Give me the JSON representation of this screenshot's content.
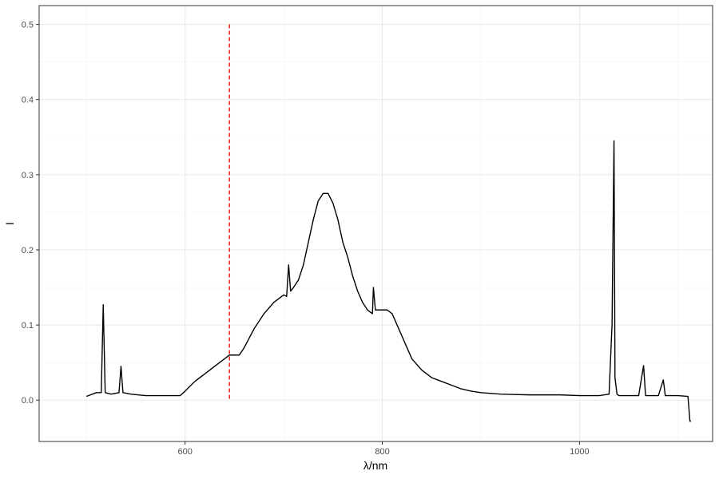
{
  "chart_data": {
    "type": "line",
    "title": "",
    "xlabel": "λ/nm",
    "ylabel": "I",
    "xlim": [
      452,
      1135
    ],
    "ylim": [
      -0.055,
      0.525
    ],
    "grid": true,
    "legend": "none",
    "x_ticks": [
      600,
      800,
      1000
    ],
    "x_tick_labels": [
      "600",
      "800",
      "1000"
    ],
    "y_ticks": [
      0.0,
      0.1,
      0.2,
      0.3,
      0.4,
      0.5
    ],
    "y_tick_labels": [
      "0.0",
      "0.1",
      "0.2",
      "0.3",
      "0.4",
      "0.5"
    ],
    "series": [
      {
        "color": "#000000",
        "x": [
          500,
          510,
          515,
          517,
          519,
          525,
          533,
          535,
          537,
          545,
          560,
          580,
          595,
          600,
          610,
          620,
          630,
          640,
          645,
          650,
          655,
          660,
          670,
          680,
          690,
          700,
          703,
          705,
          707,
          710,
          715,
          720,
          725,
          730,
          735,
          740,
          745,
          750,
          755,
          760,
          765,
          770,
          775,
          780,
          785,
          790,
          791,
          793,
          795,
          800,
          805,
          810,
          815,
          820,
          825,
          830,
          840,
          850,
          860,
          870,
          880,
          890,
          900,
          920,
          950,
          980,
          1000,
          1020,
          1030,
          1033,
          1035,
          1036,
          1038,
          1040,
          1050,
          1060,
          1065,
          1067,
          1070,
          1080,
          1085,
          1087,
          1090,
          1100,
          1110,
          1112,
          1113
        ],
        "y": [
          0.005,
          0.01,
          0.01,
          0.127,
          0.01,
          0.008,
          0.01,
          0.045,
          0.01,
          0.008,
          0.006,
          0.006,
          0.006,
          0.012,
          0.025,
          0.035,
          0.045,
          0.055,
          0.06,
          0.06,
          0.06,
          0.07,
          0.095,
          0.115,
          0.13,
          0.14,
          0.138,
          0.18,
          0.145,
          0.15,
          0.16,
          0.18,
          0.21,
          0.24,
          0.265,
          0.275,
          0.275,
          0.262,
          0.24,
          0.21,
          0.19,
          0.165,
          0.145,
          0.13,
          0.12,
          0.115,
          0.15,
          0.12,
          0.12,
          0.12,
          0.12,
          0.115,
          0.1,
          0.085,
          0.07,
          0.055,
          0.04,
          0.03,
          0.025,
          0.02,
          0.015,
          0.012,
          0.01,
          0.008,
          0.007,
          0.007,
          0.006,
          0.006,
          0.008,
          0.1,
          0.345,
          0.03,
          0.008,
          0.006,
          0.006,
          0.006,
          0.046,
          0.006,
          0.006,
          0.006,
          0.027,
          0.006,
          0.006,
          0.006,
          0.005,
          -0.028,
          -0.028
        ]
      }
    ],
    "reference_line": {
      "orientation": "vertical",
      "x": 645,
      "y_range": [
        0.0,
        0.5
      ],
      "color": "#e8312b",
      "style": "dashed"
    }
  }
}
